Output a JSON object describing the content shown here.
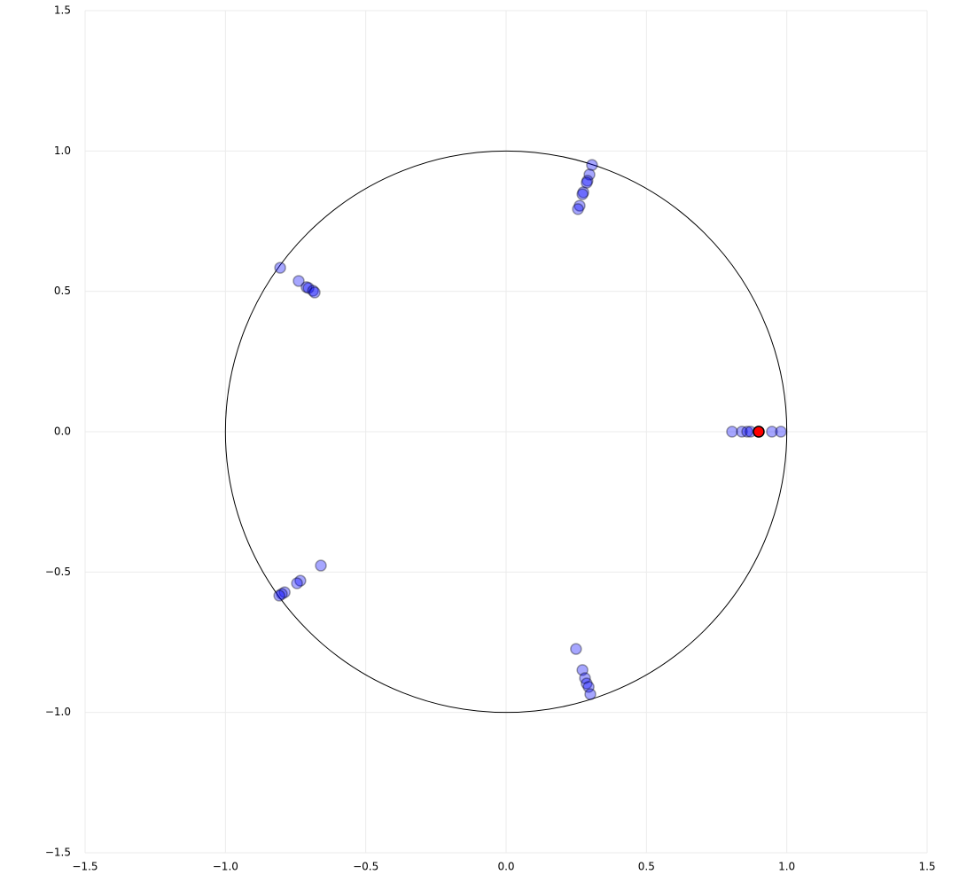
{
  "chart_data": {
    "type": "scatter",
    "xlim": [
      -1.5,
      1.5
    ],
    "ylim": [
      -1.5,
      1.5
    ],
    "xticks": [
      {
        "value": -1.5,
        "label": "−1.5"
      },
      {
        "value": -1,
        "label": "−1.0"
      },
      {
        "value": -0.5,
        "label": "−0.5"
      },
      {
        "value": 0,
        "label": "0.0"
      },
      0.5,
      {
        "value": 1,
        "label": "1.0"
      },
      1.5
    ],
    "yticks": [
      {
        "value": -1.5,
        "label": "−1.5"
      },
      {
        "value": -1,
        "label": "−1.0"
      },
      {
        "value": -0.5,
        "label": "−0.5"
      },
      {
        "value": 0,
        "label": "0.0"
      },
      0.5,
      {
        "value": 1,
        "label": "1.0"
      },
      1.5
    ],
    "grid": true,
    "reference_circle": {
      "center": [
        0,
        0
      ],
      "radius": 1
    },
    "series": [
      {
        "color": "#0000ff",
        "x": [
          0.805,
          0.84,
          0.859,
          0.871,
          0.947,
          0.979,
          0.306,
          0.297,
          0.29,
          0.287,
          0.275,
          0.272,
          0.262,
          0.256,
          -0.805,
          -0.739,
          -0.711,
          -0.704,
          -0.688,
          -0.682,
          -0.66,
          -0.733,
          -0.745,
          -0.789,
          -0.799,
          -0.808,
          0.249,
          0.272,
          0.281,
          0.287,
          0.294,
          0.3
        ],
        "values": [
          0,
          0,
          0,
          0,
          0,
          0,
          0.95,
          0.916,
          0.894,
          0.887,
          0.853,
          0.846,
          0.805,
          0.793,
          0.584,
          0.537,
          0.515,
          0.512,
          0.502,
          0.496,
          -0.477,
          -0.531,
          -0.54,
          -0.572,
          -0.578,
          -0.584,
          -0.774,
          -0.849,
          -0.878,
          -0.897,
          -0.909,
          -0.935
        ]
      },
      {
        "color": "#ff0000",
        "x": [
          0.9
        ],
        "values": [
          0
        ]
      }
    ]
  }
}
